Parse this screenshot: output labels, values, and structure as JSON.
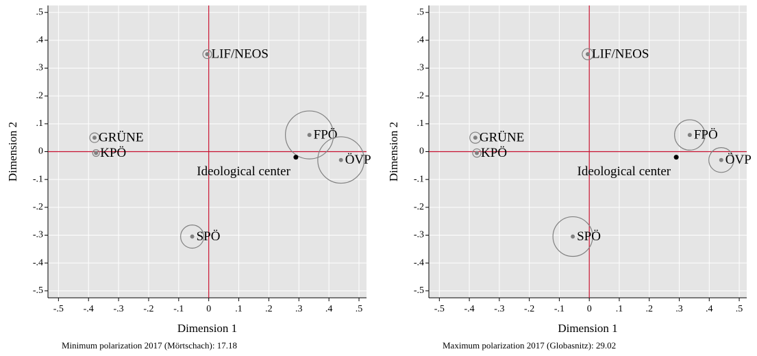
{
  "chart_data": [
    {
      "type": "scatter",
      "xlabel": "Dimension 1",
      "ylabel": "Dimension 2",
      "caption": "Minimum polarization 2017 (Mörtschach): 17.18",
      "labels": [
        "LIF/NEOS",
        "GRÜNE",
        "KPÖ",
        "FPÖ",
        "ÖVP",
        "SPÖ"
      ],
      "x": [
        -0.005,
        -0.38,
        -0.375,
        0.335,
        0.44,
        -0.055
      ],
      "values": [
        0.35,
        0.05,
        -0.005,
        0.06,
        -0.03,
        -0.305
      ],
      "sizes": [
        1,
        1.2,
        0.6,
        30,
        28,
        7
      ],
      "center": {
        "label": "Ideological center",
        "x": 0.29,
        "y": -0.02
      },
      "xlim": [
        -0.535,
        0.525
      ],
      "ylim": [
        -0.525,
        0.525
      ],
      "xticks": [
        {
          "value": -0.5,
          "label": "-.5"
        },
        {
          "value": -0.4,
          "label": "-.4"
        },
        {
          "value": -0.3,
          "label": "-.3"
        },
        {
          "value": -0.2,
          "label": "-.2"
        },
        {
          "value": -0.1,
          "label": "-.1"
        },
        0,
        {
          "value": 0.1,
          "label": ".1"
        },
        {
          "value": 0.2,
          "label": ".2"
        },
        {
          "value": 0.3,
          "label": ".3"
        },
        {
          "value": 0.4,
          "label": ".4"
        },
        {
          "value": 0.5,
          "label": ".5"
        }
      ],
      "yticks": [
        {
          "value": -0.5,
          "label": "-.5"
        },
        {
          "value": -0.4,
          "label": "-.4"
        },
        {
          "value": -0.3,
          "label": "-.3"
        },
        {
          "value": -0.2,
          "label": "-.2"
        },
        {
          "value": -0.1,
          "label": "-.1"
        },
        0,
        {
          "value": 0.1,
          "label": ".1"
        },
        {
          "value": 0.2,
          "label": ".2"
        },
        {
          "value": 0.3,
          "label": ".3"
        },
        {
          "value": 0.4,
          "label": ".4"
        },
        {
          "value": 0.5,
          "label": ".5"
        }
      ],
      "grid": true,
      "reference_lines": [
        0,
        0
      ],
      "reference_color": "#c8102e",
      "color": "#808080"
    },
    {
      "type": "scatter",
      "xlabel": "Dimension 1",
      "ylabel": "Dimension 2",
      "caption": "Maximum polarization 2017 (Globasnitz): 29.02",
      "labels": [
        "LIF/NEOS",
        "GRÜNE",
        "KPÖ",
        "FPÖ",
        "ÖVP",
        "SPÖ"
      ],
      "x": [
        -0.005,
        -0.38,
        -0.375,
        0.335,
        0.44,
        -0.055
      ],
      "values": [
        0.35,
        0.05,
        -0.005,
        0.06,
        -0.03,
        -0.305
      ],
      "sizes": [
        1.6,
        1.6,
        0.9,
        12,
        8,
        20.5
      ],
      "center": {
        "label": "Ideological center",
        "x": 0.29,
        "y": -0.02
      },
      "xlim": [
        -0.535,
        0.525
      ],
      "ylim": [
        -0.525,
        0.525
      ],
      "xticks": [
        {
          "value": -0.5,
          "label": "-.5"
        },
        {
          "value": -0.4,
          "label": "-.4"
        },
        {
          "value": -0.3,
          "label": "-.3"
        },
        {
          "value": -0.2,
          "label": "-.2"
        },
        {
          "value": -0.1,
          "label": "-.1"
        },
        0,
        {
          "value": 0.1,
          "label": ".1"
        },
        {
          "value": 0.2,
          "label": ".2"
        },
        {
          "value": 0.3,
          "label": ".3"
        },
        {
          "value": 0.4,
          "label": ".4"
        },
        {
          "value": 0.5,
          "label": ".5"
        }
      ],
      "yticks": [
        {
          "value": -0.5,
          "label": "-.5"
        },
        {
          "value": -0.4,
          "label": "-.4"
        },
        {
          "value": -0.3,
          "label": "-.3"
        },
        {
          "value": -0.2,
          "label": "-.2"
        },
        {
          "value": -0.1,
          "label": "-.1"
        },
        0,
        {
          "value": 0.1,
          "label": ".1"
        },
        {
          "value": 0.2,
          "label": ".2"
        },
        {
          "value": 0.3,
          "label": ".3"
        },
        {
          "value": 0.4,
          "label": ".4"
        },
        {
          "value": 0.5,
          "label": ".5"
        }
      ],
      "grid": true,
      "reference_lines": [
        0,
        0
      ],
      "reference_color": "#c8102e",
      "color": "#808080"
    }
  ]
}
